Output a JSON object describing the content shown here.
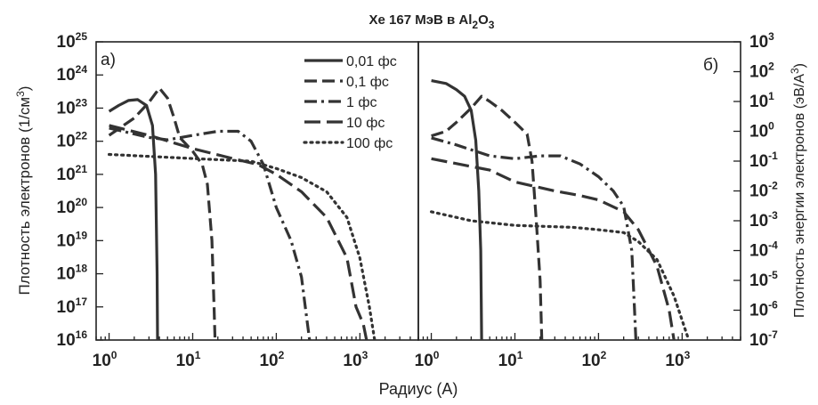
{
  "chart_data": {
    "title_main": "Xe 167 МэВ в Al",
    "title_sub1": "2",
    "title_mid": "O",
    "title_sub2": "3",
    "xlabel": "Радиус (А)",
    "ylabel_left_main": "Плотность электронов (1/см",
    "ylabel_left_sup": "3",
    "ylabel_left_end": ")",
    "ylabel_right_main": "Плотность энергии электронов (эВ/А",
    "ylabel_right_sup": "3",
    "ylabel_right_end": ")",
    "x_tick_base": "10",
    "x_tick_exponents": [
      "0",
      "1",
      "2",
      "3"
    ],
    "x_scale": "log",
    "legend_position": "top-center of left panel",
    "legend": [
      {
        "label": "0,01 фс",
        "style": "solid"
      },
      {
        "label": "0,1 фс",
        "style": "dashed"
      },
      {
        "label": "1 фс",
        "style": "dashdot"
      },
      {
        "label": "10 фс",
        "style": "longdash"
      },
      {
        "label": "100 фс",
        "style": "dotted"
      }
    ],
    "panels": [
      {
        "id": "a",
        "label": "а)",
        "type": "line",
        "y_scale": "log",
        "xlim": [
          0.7,
          5000
        ],
        "ylim": [
          1e+16,
          1e+25
        ],
        "y_tick_base": "10",
        "y_tick_exponents": [
          "16",
          "17",
          "18",
          "19",
          "20",
          "21",
          "22",
          "23",
          "24",
          "25"
        ],
        "series": [
          {
            "name": "0,01 фс",
            "style": "solid",
            "points": [
              [
                1,
                8e+22
              ],
              [
                1.3,
                1.2e+23
              ],
              [
                1.7,
                1.7e+23
              ],
              [
                2.2,
                1.8e+23
              ],
              [
                2.8,
                1.2e+23
              ],
              [
                3.3,
                3e+22
              ],
              [
                3.6,
                1e+21
              ],
              [
                3.75,
                1e+18
              ],
              [
                3.8,
                1e+16
              ]
            ]
          },
          {
            "name": "0,1 фс",
            "style": "dashed",
            "points": [
              [
                1,
                1.5e+22
              ],
              [
                2,
                5e+22
              ],
              [
                3,
                1.5e+23
              ],
              [
                4,
                4e+23
              ],
              [
                5,
                2e+23
              ],
              [
                6,
                5e+22
              ],
              [
                7,
                1.3e+22
              ],
              [
                10,
                5e+21
              ],
              [
                13,
                2e+21
              ],
              [
                15,
                5e+20
              ],
              [
                17,
                1e+19
              ],
              [
                18,
                1e+17
              ],
              [
                18.5,
                1e+16
              ]
            ]
          },
          {
            "name": "1 фс",
            "style": "dashdot",
            "points": [
              [
                1,
                2.5e+22
              ],
              [
                3,
                1.3e+22
              ],
              [
                5,
                1.1e+22
              ],
              [
                10,
                1.5e+22
              ],
              [
                20,
                2e+22
              ],
              [
                35,
                2e+22
              ],
              [
                50,
                1e+22
              ],
              [
                70,
                2e+21
              ],
              [
                100,
                1e+20
              ],
              [
                150,
                1e+19
              ],
              [
                200,
                8e+17
              ],
              [
                230,
                5e+16
              ],
              [
                250,
                1e+16
              ]
            ]
          },
          {
            "name": "10 фс",
            "style": "longdash",
            "points": [
              [
                1,
                3e+22
              ],
              [
                3,
                1.5e+22
              ],
              [
                10,
                6e+21
              ],
              [
                30,
                3e+21
              ],
              [
                60,
                2e+21
              ],
              [
                100,
                1e+21
              ],
              [
                200,
                3e+20
              ],
              [
                400,
                5e+19
              ],
              [
                700,
                3e+18
              ],
              [
                900,
                1e+17
              ],
              [
                1100,
                3e+16
              ],
              [
                1200,
                1e+16
              ]
            ]
          },
          {
            "name": "100 фс",
            "style": "dotted",
            "points": [
              [
                1,
                4e+21
              ],
              [
                10,
                3e+21
              ],
              [
                50,
                2.5e+21
              ],
              [
                100,
                1.5e+21
              ],
              [
                200,
                8e+20
              ],
              [
                400,
                3e+20
              ],
              [
                700,
                5e+19
              ],
              [
                1000,
                3e+18
              ],
              [
                1300,
                1e+17
              ],
              [
                1500,
                1e+16
              ]
            ]
          }
        ]
      },
      {
        "id": "b",
        "label": "б)",
        "type": "line",
        "y_scale": "log",
        "xlim": [
          0.7,
          5000
        ],
        "ylim": [
          1e-07,
          1000.0
        ],
        "y_tick_base": "10",
        "y_tick_exponents": [
          "-7",
          "-6",
          "-5",
          "-4",
          "-3",
          "-2",
          "-1",
          "0",
          "1",
          "2",
          "3"
        ],
        "series": [
          {
            "name": "0,01 фс",
            "style": "solid",
            "points": [
              [
                1,
                50
              ],
              [
                1.5,
                40
              ],
              [
                2,
                25
              ],
              [
                2.5,
                15
              ],
              [
                3,
                5
              ],
              [
                3.4,
                0.5
              ],
              [
                3.7,
                0.01
              ],
              [
                3.9,
                0.0001
              ],
              [
                4,
                1e-07
              ]
            ]
          },
          {
            "name": "0,1 фс",
            "style": "dashed",
            "points": [
              [
                1,
                0.7
              ],
              [
                1.5,
                1
              ],
              [
                2,
                2
              ],
              [
                3,
                6
              ],
              [
                4,
                15
              ],
              [
                5,
                10
              ],
              [
                7,
                5
              ],
              [
                10,
                2
              ],
              [
                14,
                0.8
              ],
              [
                16,
                0.1
              ],
              [
                18,
                0.001
              ],
              [
                20,
                1e-05
              ],
              [
                21,
                1e-07
              ]
            ]
          },
          {
            "name": "1 фс",
            "style": "dashdot",
            "points": [
              [
                1,
                0.6
              ],
              [
                2,
                0.35
              ],
              [
                5,
                0.15
              ],
              [
                10,
                0.12
              ],
              [
                20,
                0.15
              ],
              [
                35,
                0.15
              ],
              [
                60,
                0.08
              ],
              [
                100,
                0.03
              ],
              [
                150,
                0.01
              ],
              [
                200,
                0.003
              ],
              [
                250,
                0.0001
              ],
              [
                270,
                1e-06
              ],
              [
                280,
                1e-07
              ]
            ]
          },
          {
            "name": "10 фс",
            "style": "longdash",
            "points": [
              [
                1,
                0.12
              ],
              [
                5,
                0.05
              ],
              [
                10,
                0.02
              ],
              [
                30,
                0.01
              ],
              [
                60,
                0.007
              ],
              [
                100,
                0.005
              ],
              [
                200,
                0.002
              ],
              [
                300,
                0.0005
              ],
              [
                500,
                3e-05
              ],
              [
                700,
                1e-06
              ],
              [
                800,
                1e-07
              ]
            ]
          },
          {
            "name": "100 фс",
            "style": "dotted",
            "points": [
              [
                1,
                0.002
              ],
              [
                3,
                0.001
              ],
              [
                10,
                0.0007
              ],
              [
                50,
                0.0006
              ],
              [
                100,
                0.0005
              ],
              [
                200,
                0.0004
              ],
              [
                300,
                0.0002
              ],
              [
                500,
                5e-05
              ],
              [
                800,
                3e-06
              ],
              [
                1200,
                1e-07
              ]
            ]
          }
        ]
      }
    ]
  }
}
